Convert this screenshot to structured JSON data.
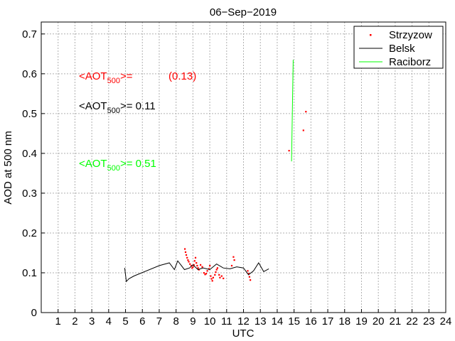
{
  "chart_data": {
    "type": "scatter",
    "title": "06−Sep−2019",
    "xlabel": "UTC",
    "ylabel": "AOD at 500 nm",
    "xlim": [
      0,
      24
    ],
    "ylim": [
      0,
      0.73
    ],
    "grid": true,
    "legend_position": "top-right",
    "x_ticks": [
      1,
      2,
      3,
      4,
      5,
      6,
      7,
      8,
      9,
      10,
      11,
      12,
      13,
      14,
      15,
      16,
      17,
      18,
      19,
      20,
      21,
      22,
      23,
      24
    ],
    "y_ticks": [
      0,
      0.1,
      0.2,
      0.3,
      0.4,
      0.5,
      0.6,
      0.7
    ],
    "y_tick_labels": [
      "0",
      "0.1",
      "0.2",
      "0.3",
      "0.4",
      "0.5",
      "0.6",
      "0.7"
    ],
    "series": [
      {
        "name": "Strzyzow",
        "kind": "points",
        "color": "#ff0000",
        "points": [
          [
            8.52,
            0.16
          ],
          [
            8.56,
            0.152
          ],
          [
            8.6,
            0.145
          ],
          [
            8.65,
            0.138
          ],
          [
            8.7,
            0.132
          ],
          [
            8.75,
            0.128
          ],
          [
            8.82,
            0.122
          ],
          [
            8.9,
            0.118
          ],
          [
            8.95,
            0.112
          ],
          [
            9.0,
            0.115
          ],
          [
            9.05,
            0.12
          ],
          [
            9.1,
            0.13
          ],
          [
            9.15,
            0.138
          ],
          [
            9.2,
            0.125
          ],
          [
            9.25,
            0.118
          ],
          [
            9.3,
            0.112
          ],
          [
            9.35,
            0.108
          ],
          [
            9.45,
            0.12
          ],
          [
            9.55,
            0.115
          ],
          [
            9.65,
            0.1
          ],
          [
            9.72,
            0.096
          ],
          [
            9.78,
            0.098
          ],
          [
            9.85,
            0.105
          ],
          [
            9.95,
            0.11
          ],
          [
            10.0,
            0.118
          ],
          [
            10.05,
            0.092
          ],
          [
            10.1,
            0.085
          ],
          [
            10.15,
            0.08
          ],
          [
            10.2,
            0.088
          ],
          [
            10.3,
            0.095
          ],
          [
            10.35,
            0.102
          ],
          [
            10.4,
            0.108
          ],
          [
            10.45,
            0.112
          ],
          [
            10.55,
            0.095
          ],
          [
            10.6,
            0.088
          ],
          [
            10.7,
            0.092
          ],
          [
            10.8,
            0.086
          ],
          [
            11.3,
            0.118
          ],
          [
            11.4,
            0.14
          ],
          [
            11.45,
            0.132
          ],
          [
            12.25,
            0.105
          ],
          [
            12.3,
            0.098
          ],
          [
            12.35,
            0.09
          ],
          [
            12.4,
            0.082
          ],
          [
            14.7,
            0.407
          ],
          [
            15.55,
            0.458
          ],
          [
            15.7,
            0.505
          ]
        ]
      },
      {
        "name": "Belsk",
        "kind": "line",
        "color": "#000000",
        "points": [
          [
            4.95,
            0.112
          ],
          [
            5.05,
            0.078
          ],
          [
            5.2,
            0.085
          ],
          [
            5.5,
            0.092
          ],
          [
            7.0,
            0.118
          ],
          [
            7.6,
            0.125
          ],
          [
            7.9,
            0.108
          ],
          [
            8.1,
            0.13
          ],
          [
            8.5,
            0.108
          ],
          [
            8.8,
            0.112
          ],
          [
            9.0,
            0.12
          ],
          [
            9.3,
            0.108
          ],
          [
            9.6,
            0.112
          ],
          [
            10.0,
            0.108
          ],
          [
            10.4,
            0.122
          ],
          [
            10.8,
            0.112
          ],
          [
            11.2,
            0.11
          ],
          [
            11.6,
            0.115
          ],
          [
            12.0,
            0.112
          ],
          [
            12.3,
            0.095
          ],
          [
            12.6,
            0.105
          ],
          [
            12.9,
            0.125
          ],
          [
            13.2,
            0.103
          ],
          [
            13.5,
            0.11
          ]
        ]
      },
      {
        "name": "Raciborz",
        "kind": "line",
        "color": "#00ff00",
        "points": [
          [
            14.85,
            0.38
          ],
          [
            14.95,
            0.635
          ]
        ]
      }
    ],
    "annotations": [
      {
        "main": "<AOT",
        "sub": "500",
        "rest": ">=",
        "value": "(0.13)",
        "color": "#ff0000"
      },
      {
        "main": "<AOT",
        "sub": "500",
        "rest": ">= 0.11",
        "value": "",
        "color": "#000000"
      },
      {
        "main": "<AOT",
        "sub": "500",
        "rest": ">= 0.51",
        "value": "",
        "color": "#00ff00"
      }
    ]
  }
}
